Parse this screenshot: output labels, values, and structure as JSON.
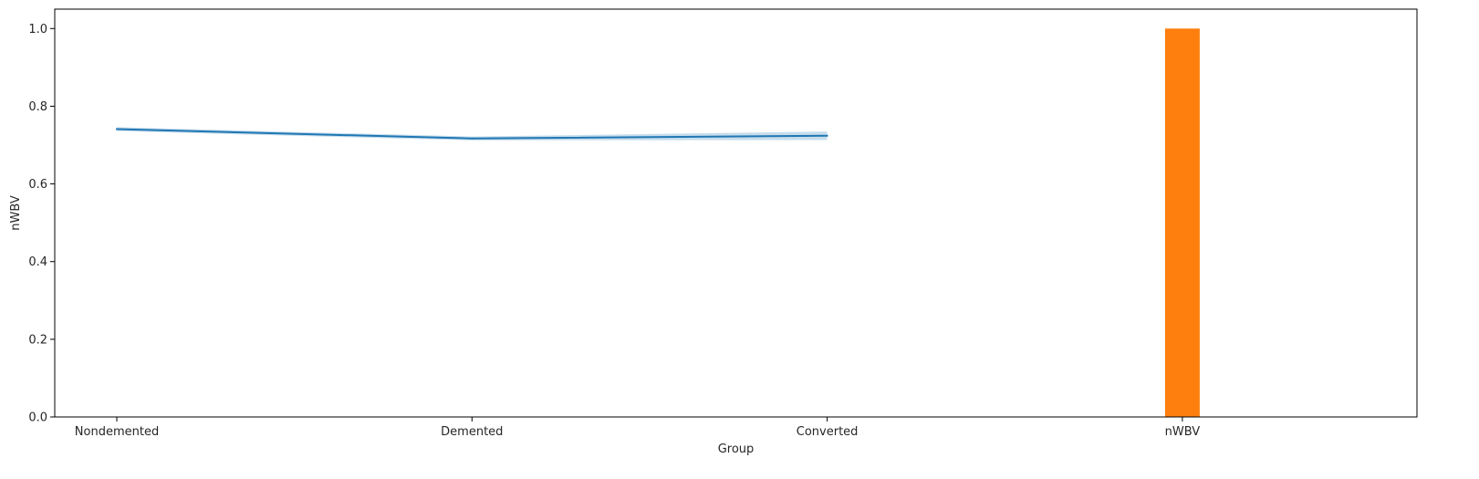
{
  "chart_data": {
    "type": "line",
    "xlabel": "Group",
    "ylabel": "nWBV",
    "categories": [
      "Nondemented",
      "Demented",
      "Converted",
      "nWBV"
    ],
    "ylim": [
      0,
      1.05
    ],
    "yticks": [
      0.0,
      0.2,
      0.4,
      0.6,
      0.8,
      1.0
    ],
    "ytick_labels": [
      "0.0",
      "0.2",
      "0.4",
      "0.6",
      "0.8",
      "1.0"
    ],
    "grid": false,
    "series": [
      {
        "kind": "line",
        "color": "#1f77b4",
        "ci_color": "#1f77b4",
        "points": [
          {
            "category": "Nondemented",
            "value": 0.741,
            "ci": [
              0.736,
              0.746
            ]
          },
          {
            "category": "Demented",
            "value": 0.717,
            "ci": [
              0.712,
              0.722
            ]
          },
          {
            "category": "Converted",
            "value": 0.724,
            "ci": [
              0.713,
              0.735
            ]
          }
        ]
      },
      {
        "kind": "bar",
        "color": "#ff7f0e",
        "points": [
          {
            "category": "nWBV",
            "value": 1.0
          }
        ]
      }
    ]
  }
}
